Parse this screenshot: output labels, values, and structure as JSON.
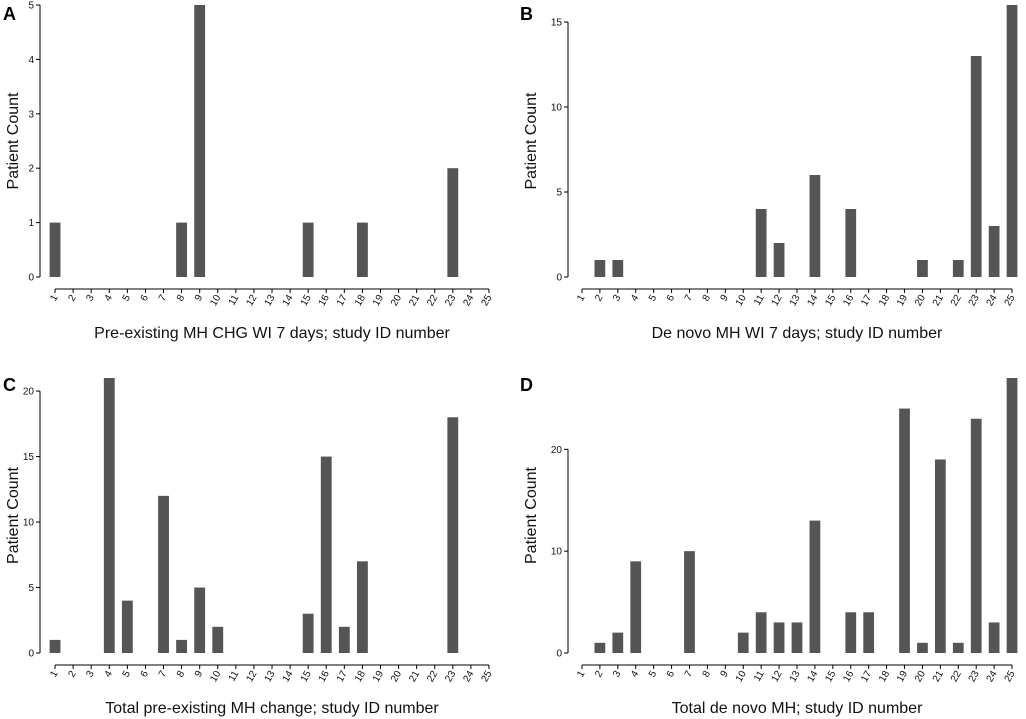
{
  "colors": {
    "bar": "#555555",
    "axis": "#000000"
  },
  "chart_data": [
    {
      "panel": "A",
      "type": "bar",
      "xlabel": "Pre-existing MH CHG WI 7 days; study ID number",
      "ylabel": "Patient Count",
      "ylim": [
        0,
        5
      ],
      "yticks": [
        0,
        1,
        2,
        3,
        4,
        5
      ],
      "categories": [
        "1",
        "2",
        "3",
        "4",
        "5",
        "6",
        "7",
        "8",
        "9",
        "10",
        "11",
        "12",
        "13",
        "14",
        "15",
        "16",
        "17",
        "18",
        "19",
        "20",
        "21",
        "22",
        "23",
        "24",
        "25"
      ],
      "values": [
        1,
        0,
        0,
        0,
        0,
        0,
        0,
        1,
        5,
        0,
        0,
        0,
        0,
        0,
        1,
        0,
        0,
        1,
        0,
        0,
        0,
        0,
        2,
        0,
        0
      ]
    },
    {
      "panel": "B",
      "type": "bar",
      "xlabel": "De novo MH WI 7 days; study ID number",
      "ylabel": "Patient Count",
      "ylim": [
        0,
        16
      ],
      "yticks": [
        0,
        5,
        10,
        15
      ],
      "categories": [
        "1",
        "2",
        "3",
        "4",
        "5",
        "6",
        "7",
        "8",
        "9",
        "10",
        "11",
        "12",
        "13",
        "14",
        "15",
        "16",
        "17",
        "18",
        "19",
        "20",
        "21",
        "22",
        "23",
        "24",
        "25"
      ],
      "values": [
        0,
        1,
        1,
        0,
        0,
        0,
        0,
        0,
        0,
        0,
        4,
        2,
        0,
        6,
        0,
        4,
        0,
        0,
        0,
        1,
        0,
        1,
        13,
        3,
        16
      ]
    },
    {
      "panel": "C",
      "type": "bar",
      "xlabel": "Total pre-existing MH change; study ID number",
      "ylabel": "Patient Count",
      "ylim": [
        0,
        21
      ],
      "yticks": [
        0,
        5,
        10,
        15,
        20
      ],
      "categories": [
        "1",
        "2",
        "3",
        "4",
        "5",
        "6",
        "7",
        "8",
        "9",
        "10",
        "11",
        "12",
        "13",
        "14",
        "15",
        "16",
        "17",
        "18",
        "19",
        "20",
        "21",
        "22",
        "23",
        "24",
        "25"
      ],
      "values": [
        1,
        0,
        0,
        21,
        4,
        0,
        12,
        1,
        5,
        2,
        0,
        0,
        0,
        0,
        3,
        15,
        2,
        7,
        0,
        0,
        0,
        0,
        18,
        0,
        0
      ]
    },
    {
      "panel": "D",
      "type": "bar",
      "xlabel": "Total de novo MH; study ID number",
      "ylabel": "Patient Count",
      "ylim": [
        0,
        27
      ],
      "yticks": [
        0,
        10,
        20
      ],
      "categories": [
        "1",
        "2",
        "3",
        "4",
        "5",
        "6",
        "7",
        "8",
        "9",
        "10",
        "11",
        "12",
        "13",
        "14",
        "15",
        "16",
        "17",
        "18",
        "19",
        "20",
        "21",
        "22",
        "23",
        "24",
        "25"
      ],
      "values": [
        0,
        1,
        2,
        9,
        0,
        0,
        10,
        0,
        0,
        2,
        4,
        3,
        3,
        13,
        0,
        4,
        4,
        0,
        24,
        1,
        19,
        1,
        23,
        3,
        27
      ]
    }
  ]
}
